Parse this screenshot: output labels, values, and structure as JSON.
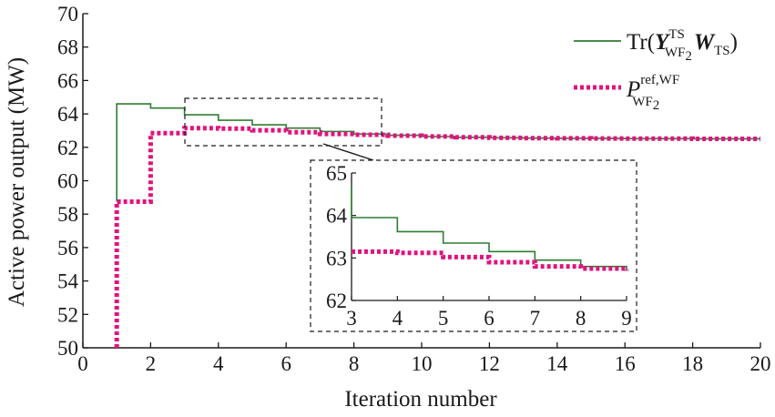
{
  "chart_data": {
    "type": "line",
    "xlabel": "Iteration number",
    "ylabel": "Active power output (MW)",
    "xlim": [
      0,
      20
    ],
    "ylim": [
      50,
      70
    ],
    "xticks": [
      "0",
      "2",
      "4",
      "6",
      "8",
      "10",
      "12",
      "14",
      "16",
      "18",
      "20"
    ],
    "yticks": [
      "50",
      "52",
      "54",
      "56",
      "58",
      "60",
      "62",
      "64",
      "66",
      "68",
      "70"
    ],
    "grid": false,
    "legend_position": "top-right",
    "series": [
      {
        "name": "Tr(Y_WF2^TS W_TS)",
        "style": "solid",
        "color": "#2e7d32",
        "x": [
          1,
          2,
          3,
          4,
          5,
          6,
          7,
          8,
          9,
          10,
          11,
          12,
          13,
          14,
          15,
          16,
          17,
          18,
          19,
          20
        ],
        "y": [
          64.6,
          64.35,
          63.95,
          63.62,
          63.35,
          63.15,
          62.95,
          62.8,
          62.72,
          62.65,
          62.6,
          62.57,
          62.55,
          62.54,
          62.53,
          62.52,
          62.52,
          62.51,
          62.51,
          62.51
        ]
      },
      {
        "name": "P_WF2^ref,WF",
        "style": "dotted",
        "color": "#e0147e",
        "x": [
          1,
          2,
          3,
          4,
          5,
          6,
          7,
          8,
          9,
          10,
          11,
          12,
          13,
          14,
          15,
          16,
          17,
          18,
          19,
          20
        ],
        "y": [
          58.75,
          62.85,
          63.15,
          63.12,
          63.02,
          62.9,
          62.8,
          62.75,
          62.7,
          62.65,
          62.6,
          62.57,
          62.55,
          62.54,
          62.53,
          62.52,
          62.52,
          62.51,
          62.51,
          62.51
        ]
      }
    ],
    "inset": {
      "xlim": [
        3,
        9
      ],
      "ylim": [
        62,
        65
      ],
      "xticks": [
        "3",
        "4",
        "5",
        "6",
        "7",
        "8",
        "9"
      ],
      "yticks": [
        "62",
        "63",
        "64",
        "65"
      ]
    }
  },
  "legend": {
    "entry1": {
      "base": "Tr(",
      "y": "Y",
      "y_sub": "WF",
      "y_sub2": "2",
      "y_sup": "TS",
      "w": "W",
      "w_sub": "TS",
      "close": ")"
    },
    "entry2": {
      "p": "P",
      "p_sub": "WF",
      "p_sub2": "2",
      "p_sup": "ref,WF"
    }
  },
  "colors": {
    "series1": "#2e7d32",
    "series2": "#e0147e",
    "axis": "#1a1a1a"
  }
}
